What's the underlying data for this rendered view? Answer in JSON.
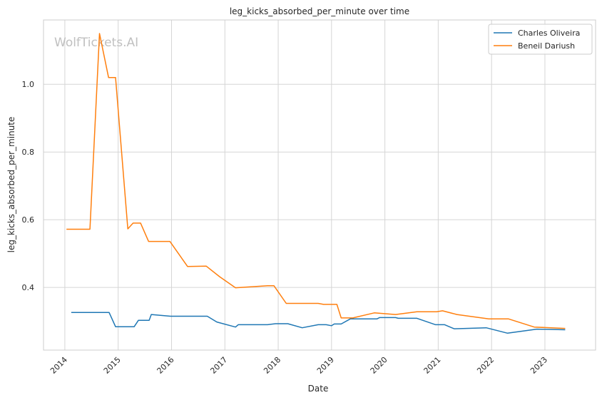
{
  "chart_data": {
    "type": "line",
    "title": "leg_kicks_absorbed_per_minute over time",
    "xlabel": "Date",
    "ylabel": "leg_kicks_absorbed_per_minute",
    "watermark": "WolfTickets.AI",
    "x_ticks": [
      "2014",
      "2015",
      "2016",
      "2017",
      "2018",
      "2019",
      "2020",
      "2021",
      "2022",
      "2023"
    ],
    "y_ticks": [
      "0.4",
      "0.6",
      "0.8",
      "1.0"
    ],
    "xlim": [
      2013.6,
      2023.95
    ],
    "ylim": [
      0.215,
      1.19
    ],
    "grid": true,
    "legend_position": "top-right",
    "series": [
      {
        "name": "Charles Oliveira",
        "color": "#1f77b4",
        "points": [
          [
            2014.12,
            0.326
          ],
          [
            2014.83,
            0.326
          ],
          [
            2014.95,
            0.284
          ],
          [
            2015.3,
            0.284
          ],
          [
            2015.38,
            0.303
          ],
          [
            2015.58,
            0.303
          ],
          [
            2015.62,
            0.32
          ],
          [
            2015.98,
            0.315
          ],
          [
            2016.67,
            0.315
          ],
          [
            2016.85,
            0.298
          ],
          [
            2017.2,
            0.283
          ],
          [
            2017.25,
            0.29
          ],
          [
            2017.8,
            0.29
          ],
          [
            2017.95,
            0.293
          ],
          [
            2018.18,
            0.293
          ],
          [
            2018.45,
            0.281
          ],
          [
            2018.75,
            0.29
          ],
          [
            2018.9,
            0.29
          ],
          [
            2019.0,
            0.287
          ],
          [
            2019.05,
            0.292
          ],
          [
            2019.18,
            0.292
          ],
          [
            2019.35,
            0.307
          ],
          [
            2019.85,
            0.307
          ],
          [
            2019.9,
            0.311
          ],
          [
            2020.2,
            0.311
          ],
          [
            2020.25,
            0.309
          ],
          [
            2020.6,
            0.309
          ],
          [
            2020.95,
            0.29
          ],
          [
            2021.12,
            0.29
          ],
          [
            2021.3,
            0.278
          ],
          [
            2021.9,
            0.281
          ],
          [
            2022.3,
            0.265
          ],
          [
            2022.85,
            0.277
          ],
          [
            2023.38,
            0.275
          ]
        ]
      },
      {
        "name": "Beneil Dariush",
        "color": "#ff7f0e",
        "points": [
          [
            2014.03,
            0.572
          ],
          [
            2014.47,
            0.572
          ],
          [
            2014.65,
            1.15
          ],
          [
            2014.82,
            1.02
          ],
          [
            2014.95,
            1.02
          ],
          [
            2015.18,
            0.573
          ],
          [
            2015.28,
            0.59
          ],
          [
            2015.42,
            0.59
          ],
          [
            2015.57,
            0.536
          ],
          [
            2015.97,
            0.536
          ],
          [
            2016.3,
            0.462
          ],
          [
            2016.65,
            0.463
          ],
          [
            2016.9,
            0.432
          ],
          [
            2017.2,
            0.399
          ],
          [
            2017.8,
            0.405
          ],
          [
            2017.92,
            0.405
          ],
          [
            2018.15,
            0.353
          ],
          [
            2018.75,
            0.353
          ],
          [
            2018.85,
            0.35
          ],
          [
            2019.1,
            0.35
          ],
          [
            2019.18,
            0.31
          ],
          [
            2019.4,
            0.31
          ],
          [
            2019.8,
            0.325
          ],
          [
            2020.2,
            0.32
          ],
          [
            2020.6,
            0.328
          ],
          [
            2020.97,
            0.328
          ],
          [
            2021.08,
            0.331
          ],
          [
            2021.35,
            0.32
          ],
          [
            2021.95,
            0.307
          ],
          [
            2022.32,
            0.307
          ],
          [
            2022.8,
            0.283
          ],
          [
            2023.38,
            0.279
          ]
        ]
      }
    ]
  }
}
